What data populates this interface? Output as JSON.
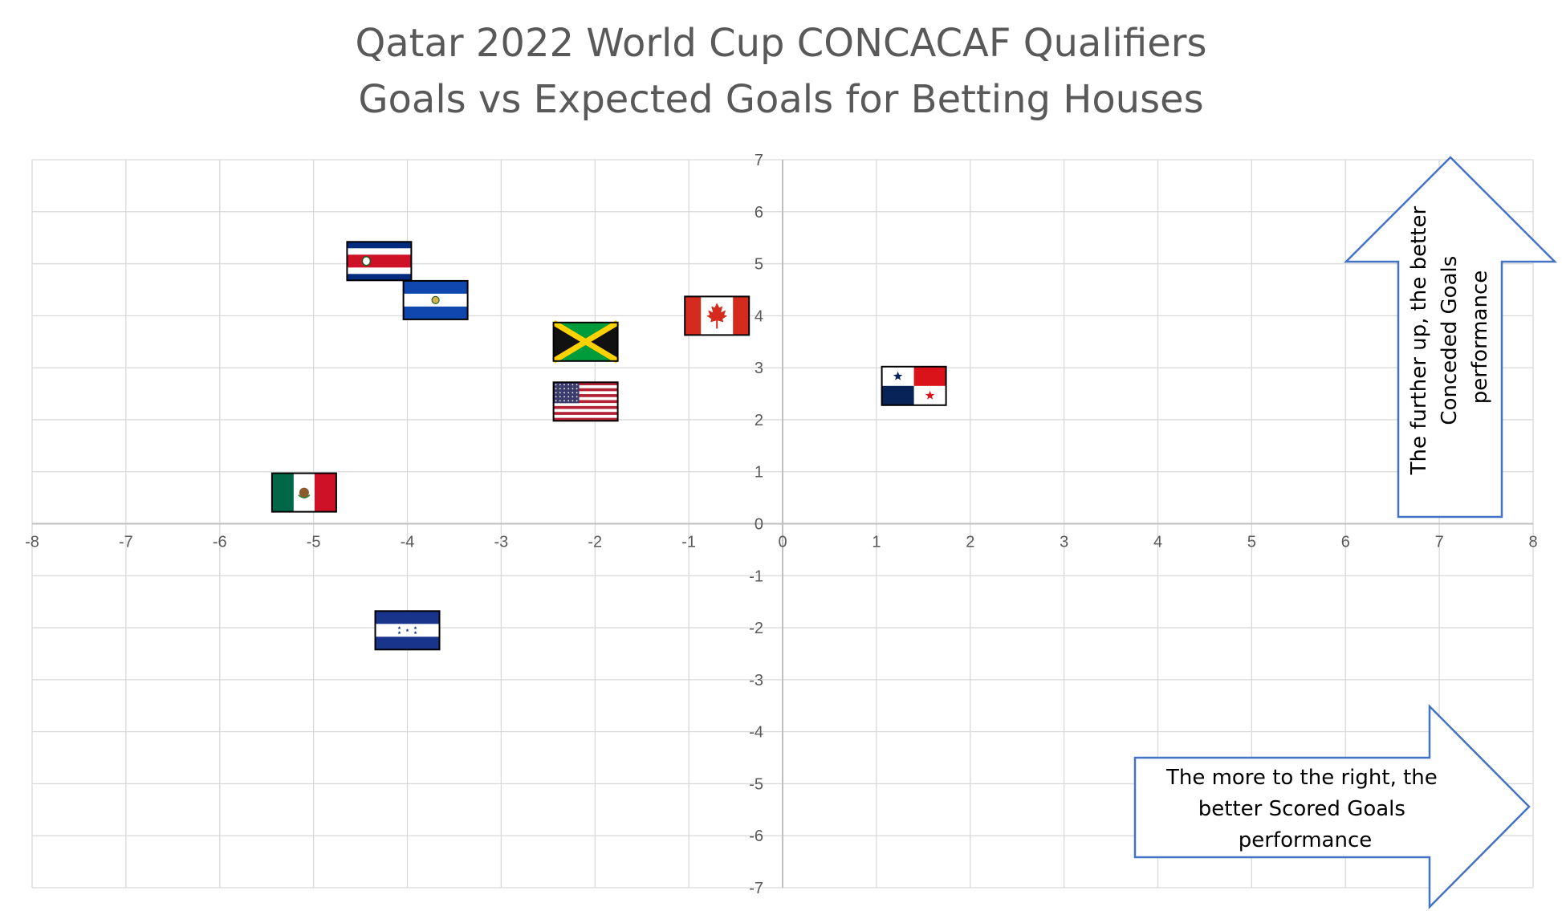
{
  "chart_data": {
    "type": "scatter",
    "title": "Qatar 2022 World Cup CONCACAF Qualifiers",
    "subtitle": "Goals vs Expected Goals for Betting Houses",
    "xlim": [
      -8,
      8
    ],
    "ylim": [
      -7,
      7
    ],
    "x_ticks": [
      "-8",
      "-7",
      "-6",
      "-5",
      "-4",
      "-3",
      "-2",
      "-1",
      "0",
      "1",
      "2",
      "3",
      "4",
      "5",
      "6",
      "7",
      "8"
    ],
    "y_ticks": [
      "7",
      "6",
      "5",
      "4",
      "3",
      "2",
      "1",
      "0",
      "-1",
      "-2",
      "-3",
      "-4",
      "-5",
      "-6",
      "-7"
    ],
    "grid": true,
    "points": [
      {
        "flag": "costa-rica",
        "x": -4.3,
        "y": 5.05
      },
      {
        "flag": "el-salvador",
        "x": -3.7,
        "y": 4.3
      },
      {
        "flag": "canada",
        "x": -0.7,
        "y": 4.0
      },
      {
        "flag": "jamaica",
        "x": -2.1,
        "y": 3.5
      },
      {
        "flag": "usa",
        "x": -2.1,
        "y": 2.35
      },
      {
        "flag": "panama",
        "x": 1.4,
        "y": 2.65
      },
      {
        "flag": "mexico",
        "x": -5.1,
        "y": 0.6
      },
      {
        "flag": "honduras",
        "x": -4.0,
        "y": -2.05
      }
    ],
    "annotations": {
      "up_arrow": [
        "The further up, the better",
        "Conceded Goals",
        "performance"
      ],
      "right_arrow": [
        "The more to the right, the",
        "better Scored Goals",
        "performance"
      ]
    },
    "colors": {
      "title": "#595959",
      "grid": "#d9d9d9",
      "axis": "#bfbfbf",
      "arrow_stroke": "#4472c4",
      "tick": "#595959"
    }
  }
}
